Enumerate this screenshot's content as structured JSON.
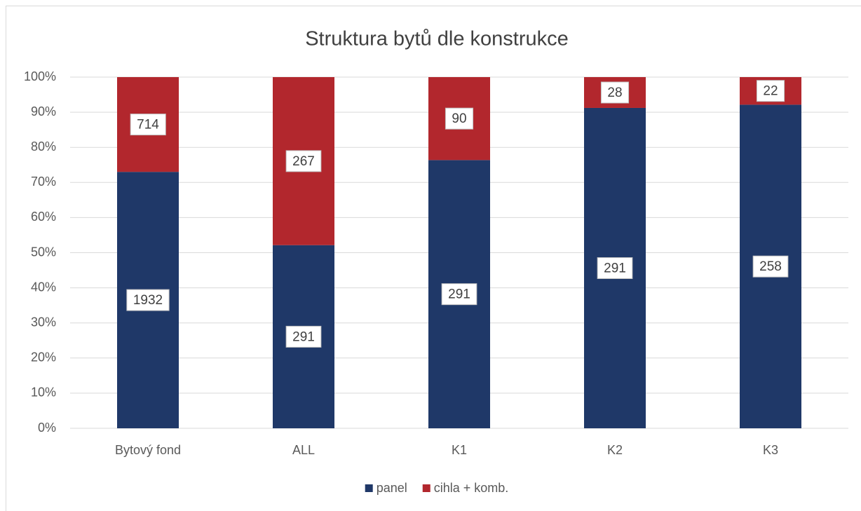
{
  "chart_data": {
    "type": "bar",
    "stacking": "percent",
    "title": "Struktura bytů dle konstrukce",
    "categories": [
      "Bytový fond",
      "ALL",
      "K1",
      "K2",
      "K3"
    ],
    "series": [
      {
        "name": "panel",
        "color": "#1f3868",
        "values": [
          1932,
          291,
          291,
          291,
          258
        ]
      },
      {
        "name": "cihla + komb.",
        "color": "#b2272d",
        "values": [
          714,
          267,
          90,
          28,
          22
        ]
      }
    ],
    "ylim": [
      0,
      100
    ],
    "yticks": [
      {
        "value": 0,
        "label": "0%"
      },
      {
        "value": 10,
        "label": "10%"
      },
      {
        "value": 20,
        "label": "20%"
      },
      {
        "value": 30,
        "label": "30%"
      },
      {
        "value": 40,
        "label": "40%"
      },
      {
        "value": 50,
        "label": "50%"
      },
      {
        "value": 60,
        "label": "60%"
      },
      {
        "value": 70,
        "label": "70%"
      },
      {
        "value": 80,
        "label": "80%"
      },
      {
        "value": 90,
        "label": "90%"
      },
      {
        "value": 100,
        "label": "100%"
      }
    ],
    "grid": true,
    "legend": "bottom"
  }
}
